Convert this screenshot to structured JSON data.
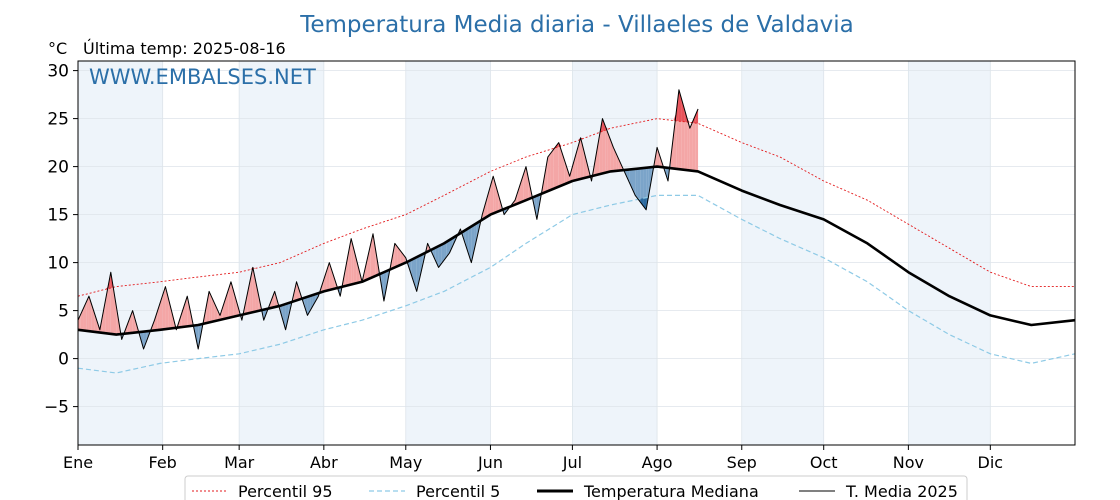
{
  "chart_data": {
    "type": "line",
    "title": "Temperatura Media diaria - Villaeles de Valdavia",
    "unit_label": "°C",
    "last_reading_label": "Última temp: 2025-08-16",
    "watermark": "WWW.EMBALSES.NET",
    "ylim": [
      -9,
      31
    ],
    "y_ticks": [
      30,
      25,
      20,
      15,
      10,
      5,
      0,
      -5
    ],
    "y_tick_labels": [
      "30",
      "25",
      "20",
      "15",
      "10",
      "5",
      "0",
      "−5"
    ],
    "xlim_day_of_year": [
      1,
      366
    ],
    "month_ticks": [
      {
        "label": "Ene",
        "day": 1
      },
      {
        "label": "Feb",
        "day": 32
      },
      {
        "label": "Mar",
        "day": 60
      },
      {
        "label": "Abr",
        "day": 91
      },
      {
        "label": "May",
        "day": 121
      },
      {
        "label": "Jun",
        "day": 152
      },
      {
        "label": "Jul",
        "day": 182
      },
      {
        "label": "Ago",
        "day": 213
      },
      {
        "label": "Sep",
        "day": 244
      },
      {
        "label": "Oct",
        "day": 274
      },
      {
        "label": "Nov",
        "day": 305
      },
      {
        "label": "Dic",
        "day": 335
      }
    ],
    "grid": true,
    "legend_position": "bottom",
    "colors": {
      "p95": "#e31a1c",
      "p5": "#8ecae6",
      "median": "#000000",
      "current": "#000000",
      "above_fill": "#f4a6a6",
      "above_fill_strong": "#e8535a",
      "below_fill": "#7ba4c9",
      "below_fill_strong": "#2d6a9f",
      "shade": "#eef4fa"
    },
    "series": [
      {
        "name": "Percentil 95",
        "style": "dotted-red",
        "x": [
          1,
          15,
          31,
          45,
          60,
          75,
          91,
          105,
          121,
          135,
          152,
          165,
          182,
          196,
          213,
          228,
          244,
          258,
          274,
          290,
          305,
          320,
          335,
          350,
          366
        ],
        "values": [
          6.5,
          7.5,
          8.0,
          8.5,
          9.0,
          10.0,
          12.0,
          13.5,
          15.0,
          17.0,
          19.5,
          21.0,
          22.5,
          24.0,
          25.0,
          24.5,
          22.5,
          21.0,
          18.5,
          16.5,
          14.0,
          11.5,
          9.0,
          7.5,
          7.5
        ]
      },
      {
        "name": "Percentil 5",
        "style": "dashed-lightblue",
        "x": [
          1,
          15,
          31,
          45,
          60,
          75,
          91,
          105,
          121,
          135,
          152,
          165,
          182,
          196,
          213,
          228,
          244,
          258,
          274,
          290,
          305,
          320,
          335,
          350,
          366
        ],
        "values": [
          -1.0,
          -1.5,
          -0.5,
          0.0,
          0.5,
          1.5,
          3.0,
          4.0,
          5.5,
          7.0,
          9.5,
          12.0,
          15.0,
          16.0,
          17.0,
          17.0,
          14.5,
          12.5,
          10.5,
          8.0,
          5.0,
          2.5,
          0.5,
          -0.5,
          0.5
        ]
      },
      {
        "name": "Temperatura Mediana",
        "style": "thick-black",
        "x": [
          1,
          15,
          31,
          45,
          60,
          75,
          91,
          105,
          121,
          135,
          152,
          165,
          182,
          196,
          213,
          228,
          244,
          258,
          274,
          290,
          305,
          320,
          335,
          350,
          366
        ],
        "values": [
          3.0,
          2.5,
          3.0,
          3.5,
          4.5,
          5.5,
          7.0,
          8.0,
          10.0,
          12.0,
          15.0,
          16.5,
          18.5,
          19.5,
          20.0,
          19.5,
          17.5,
          16.0,
          14.5,
          12.0,
          9.0,
          6.5,
          4.5,
          3.5,
          4.0
        ]
      },
      {
        "name": "T. Media 2025",
        "style": "thin-black",
        "x": [
          1,
          5,
          9,
          13,
          17,
          21,
          25,
          29,
          33,
          37,
          41,
          45,
          49,
          53,
          57,
          61,
          65,
          69,
          73,
          77,
          81,
          85,
          89,
          93,
          97,
          101,
          105,
          109,
          113,
          117,
          121,
          125,
          129,
          133,
          137,
          141,
          145,
          149,
          153,
          157,
          161,
          165,
          169,
          173,
          177,
          181,
          185,
          189,
          193,
          197,
          201,
          205,
          209,
          213,
          217,
          221,
          225,
          228
        ],
        "values": [
          4.0,
          6.5,
          3.0,
          9.0,
          2.0,
          5.0,
          1.0,
          4.0,
          7.5,
          3.0,
          6.5,
          1.0,
          7.0,
          4.5,
          8.0,
          4.0,
          9.5,
          4.0,
          7.0,
          3.0,
          8.0,
          4.5,
          6.5,
          10.0,
          6.5,
          12.5,
          8.0,
          13.0,
          6.0,
          12.0,
          10.5,
          7.0,
          12.0,
          9.5,
          11.0,
          13.5,
          10.0,
          15.0,
          19.0,
          15.0,
          16.5,
          20.0,
          14.5,
          21.0,
          22.5,
          19.0,
          23.0,
          18.5,
          25.0,
          22.0,
          19.5,
          17.0,
          15.5,
          22.0,
          18.5,
          28.0,
          24.0,
          26.0
        ]
      }
    ]
  },
  "legend": {
    "p95": "Percentil 95",
    "p5": "Percentil 5",
    "median": "Temperatura Mediana",
    "current": "T. Media 2025"
  }
}
